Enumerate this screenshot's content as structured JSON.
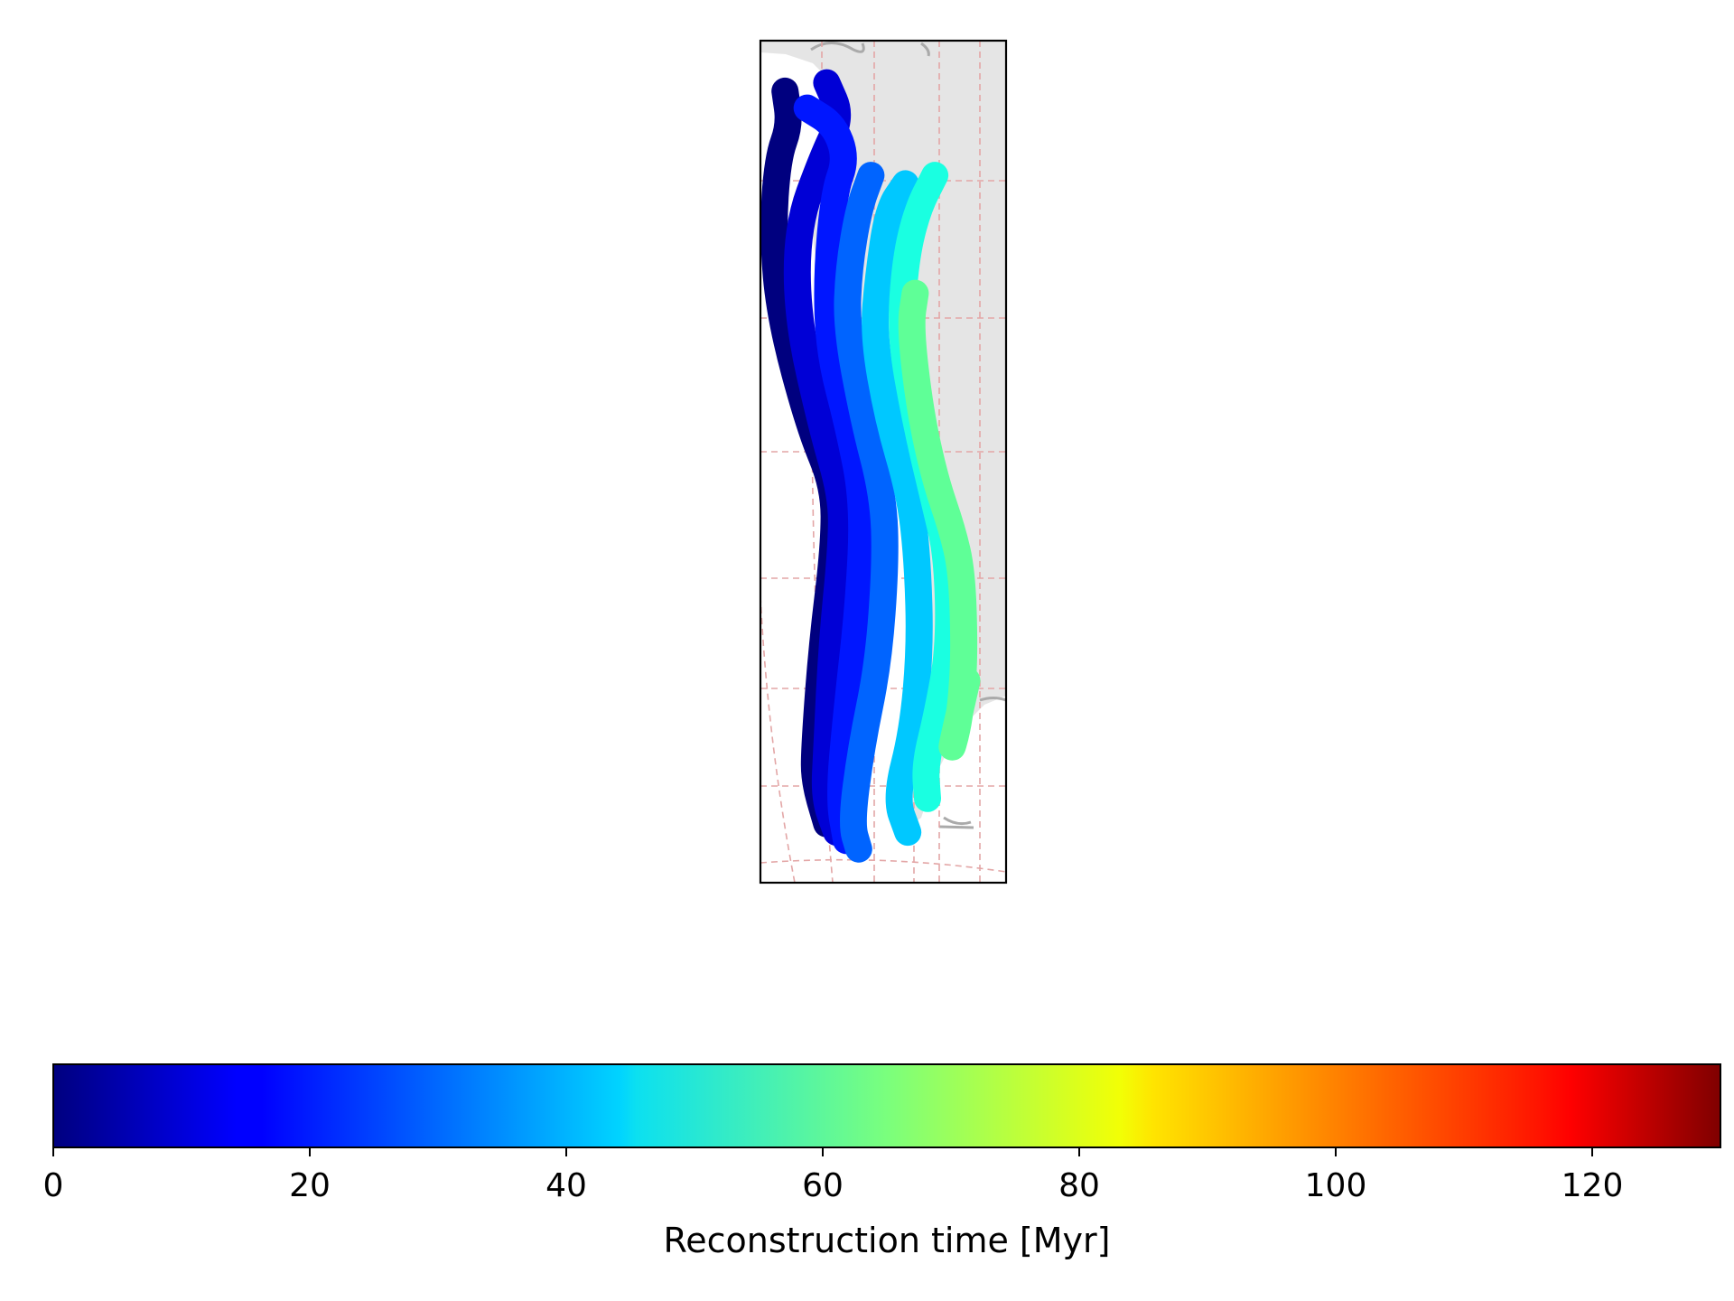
{
  "chart_data": {
    "type": "line",
    "title": "",
    "colormap": "jet",
    "colorbar": {
      "label": "Reconstruction time [Myr]",
      "range": [
        0,
        130
      ],
      "ticks": [
        0,
        20,
        40,
        60,
        80,
        100,
        120
      ],
      "tick_labels": [
        "0",
        "20",
        "40",
        "60",
        "80",
        "100",
        "120"
      ],
      "orientation": "horizontal",
      "placement": "bottom"
    },
    "series": [
      {
        "time": 0,
        "color": "#00007f",
        "points": [
          [
            0.1,
            0.94
          ],
          [
            0.12,
            0.9
          ],
          [
            0.07,
            0.86
          ],
          [
            0.05,
            0.77
          ],
          [
            0.08,
            0.67
          ],
          [
            0.2,
            0.54
          ],
          [
            0.3,
            0.47
          ],
          [
            0.3,
            0.4
          ],
          [
            0.25,
            0.28
          ],
          [
            0.22,
            0.16
          ],
          [
            0.22,
            0.12
          ],
          [
            0.27,
            0.07
          ]
        ]
      },
      {
        "time": 10,
        "color": "#0000d6",
        "points": [
          [
            0.27,
            0.95
          ],
          [
            0.33,
            0.91
          ],
          [
            0.25,
            0.86
          ],
          [
            0.15,
            0.78
          ],
          [
            0.15,
            0.67
          ],
          [
            0.25,
            0.54
          ],
          [
            0.33,
            0.46
          ],
          [
            0.33,
            0.4
          ],
          [
            0.29,
            0.28
          ],
          [
            0.27,
            0.16
          ],
          [
            0.26,
            0.1
          ],
          [
            0.31,
            0.06
          ]
        ]
      },
      {
        "time": 20,
        "color": "#0016ff",
        "points": [
          [
            0.19,
            0.92
          ],
          [
            0.3,
            0.9
          ],
          [
            0.35,
            0.86
          ],
          [
            0.3,
            0.82
          ],
          [
            0.27,
            0.72
          ],
          [
            0.28,
            0.63
          ],
          [
            0.36,
            0.54
          ],
          [
            0.42,
            0.45
          ],
          [
            0.4,
            0.33
          ],
          [
            0.35,
            0.2
          ],
          [
            0.32,
            0.1
          ],
          [
            0.35,
            0.05
          ]
        ]
      },
      {
        "time": 30,
        "color": "#0064ff",
        "points": [
          [
            0.45,
            0.84
          ],
          [
            0.4,
            0.8
          ],
          [
            0.36,
            0.73
          ],
          [
            0.35,
            0.66
          ],
          [
            0.42,
            0.55
          ],
          [
            0.5,
            0.46
          ],
          [
            0.51,
            0.38
          ],
          [
            0.48,
            0.26
          ],
          [
            0.41,
            0.16
          ],
          [
            0.37,
            0.07
          ],
          [
            0.4,
            0.04
          ]
        ]
      },
      {
        "time": 40,
        "color": "#00c8ff",
        "points": [
          [
            0.59,
            0.83
          ],
          [
            0.52,
            0.8
          ],
          [
            0.48,
            0.72
          ],
          [
            0.46,
            0.65
          ],
          [
            0.52,
            0.55
          ],
          [
            0.61,
            0.46
          ],
          [
            0.64,
            0.38
          ],
          [
            0.65,
            0.28
          ],
          [
            0.62,
            0.18
          ],
          [
            0.55,
            0.1
          ],
          [
            0.6,
            0.06
          ]
        ]
      },
      {
        "time": 50,
        "color": "#1affe1",
        "points": [
          [
            0.71,
            0.84
          ],
          [
            0.64,
            0.8
          ],
          [
            0.59,
            0.74
          ],
          [
            0.57,
            0.65
          ],
          [
            0.63,
            0.55
          ],
          [
            0.71,
            0.45
          ],
          [
            0.76,
            0.39
          ],
          [
            0.77,
            0.28
          ],
          [
            0.72,
            0.2
          ],
          [
            0.67,
            0.14
          ],
          [
            0.68,
            0.1
          ]
        ]
      },
      {
        "time": 60,
        "color": "#5fff97",
        "points": [
          [
            0.63,
            0.7
          ],
          [
            0.61,
            0.66
          ],
          [
            0.65,
            0.56
          ],
          [
            0.71,
            0.48
          ],
          [
            0.78,
            0.42
          ],
          [
            0.82,
            0.37
          ],
          [
            0.83,
            0.28
          ],
          [
            0.82,
            0.22
          ],
          [
            0.8,
            0.18
          ],
          [
            0.77,
            0.15
          ],
          [
            0.84,
            0.24
          ]
        ]
      }
    ]
  }
}
